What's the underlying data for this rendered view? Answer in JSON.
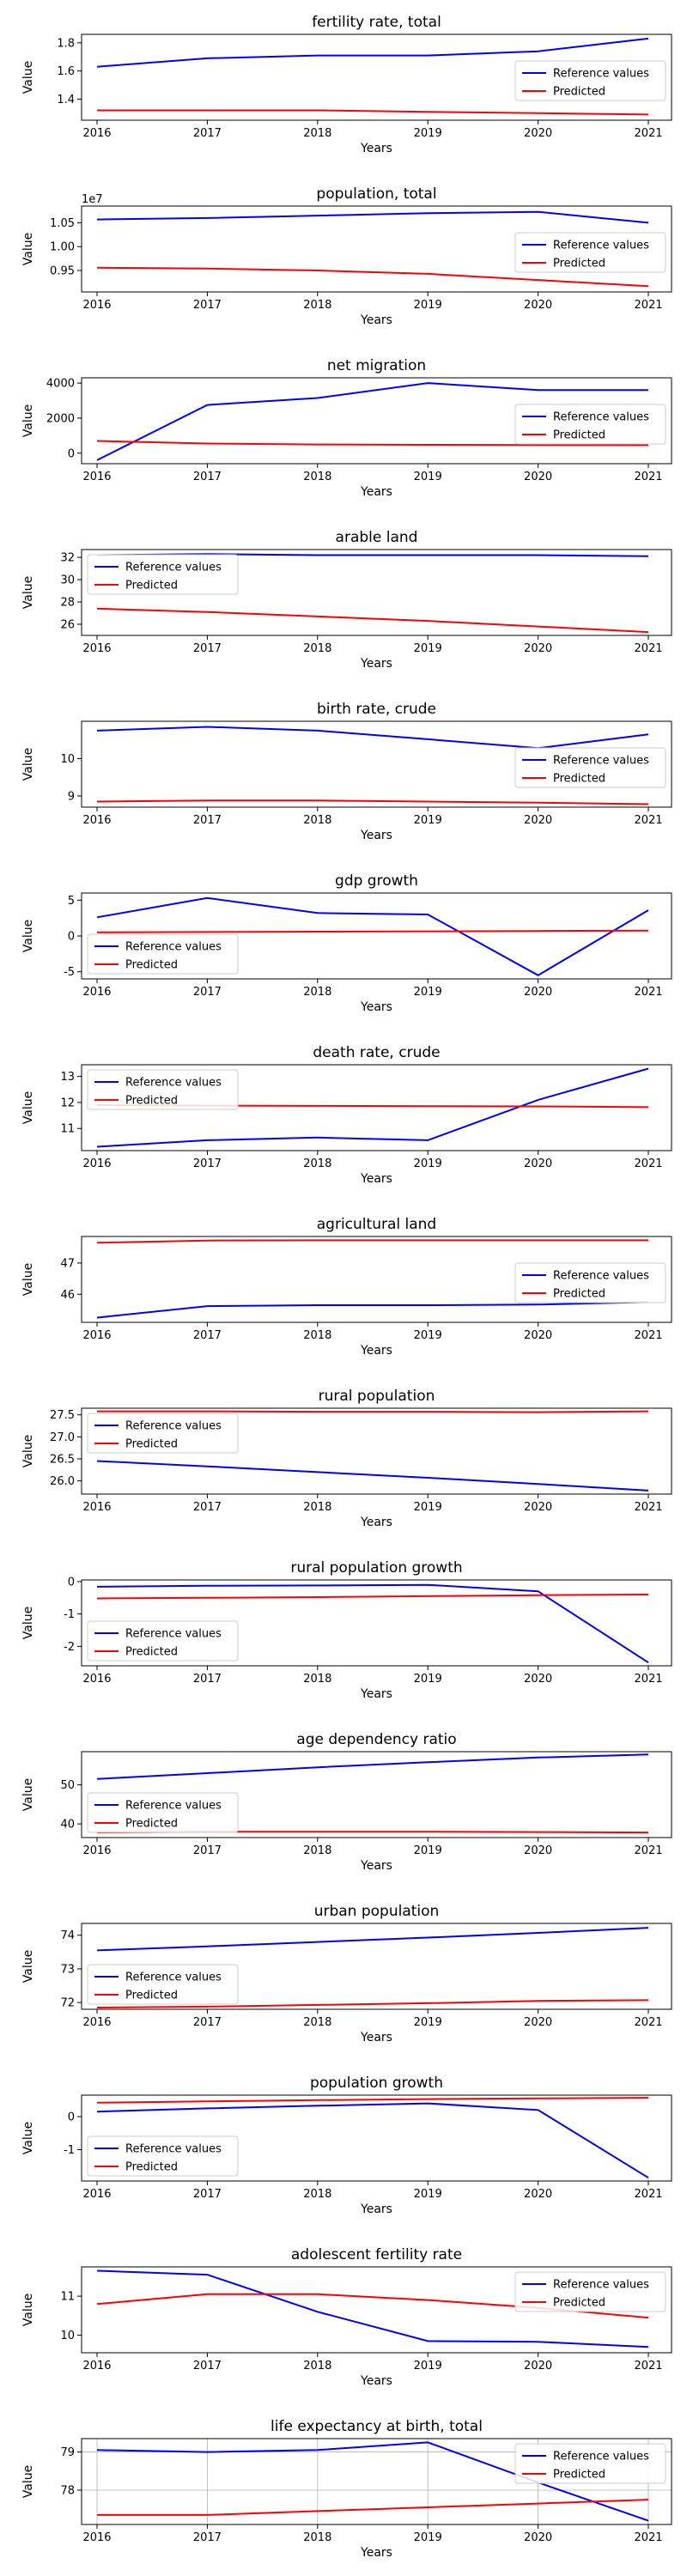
{
  "chart_data": [
    {
      "type": "line",
      "title": "fertility rate, total",
      "xlabel": "Years",
      "ylabel": "Value",
      "x": [
        2016,
        2017,
        2018,
        2019,
        2020,
        2021
      ],
      "ylim": [
        1.25,
        1.86
      ],
      "yticks": [
        "1.4",
        "1.6",
        "1.8"
      ],
      "ytick_values": [
        1.4,
        1.6,
        1.8
      ],
      "legend": "center-right",
      "series": [
        {
          "name": "Reference values",
          "color": "#0000ff",
          "values": [
            1.63,
            1.69,
            1.71,
            1.71,
            1.74,
            1.83
          ]
        },
        {
          "name": "Predicted",
          "color": "#ff0000",
          "values": [
            1.32,
            1.32,
            1.32,
            1.31,
            1.3,
            1.29
          ]
        }
      ]
    },
    {
      "type": "line",
      "title": "population, total",
      "xlabel": "Years",
      "ylabel": "Value",
      "offset_label": "1e7",
      "x": [
        2016,
        2017,
        2018,
        2019,
        2020,
        2021
      ],
      "ylim": [
        0.905,
        1.085
      ],
      "yticks": [
        "0.95",
        "1.00",
        "1.05"
      ],
      "ytick_values": [
        0.95,
        1.0,
        1.05
      ],
      "legend": "center-right",
      "series": [
        {
          "name": "Reference values",
          "color": "#0000ff",
          "values": [
            1.057,
            1.06,
            1.065,
            1.07,
            1.073,
            1.05
          ]
        },
        {
          "name": "Predicted",
          "color": "#ff0000",
          "values": [
            0.956,
            0.954,
            0.95,
            0.943,
            0.93,
            0.917
          ]
        }
      ]
    },
    {
      "type": "line",
      "title": "net migration",
      "xlabel": "Years",
      "ylabel": "Value",
      "x": [
        2016,
        2017,
        2018,
        2019,
        2020,
        2021
      ],
      "ylim": [
        -600,
        4300
      ],
      "yticks": [
        "0",
        "2000",
        "4000"
      ],
      "ytick_values": [
        0,
        2000,
        4000
      ],
      "legend": "center-right",
      "series": [
        {
          "name": "Reference values",
          "color": "#0000ff",
          "values": [
            -400,
            2750,
            3150,
            4000,
            3600,
            3600
          ]
        },
        {
          "name": "Predicted",
          "color": "#ff0000",
          "values": [
            700,
            550,
            500,
            480,
            470,
            460
          ]
        }
      ]
    },
    {
      "type": "line",
      "title": "arable land",
      "xlabel": "Years",
      "ylabel": "Value",
      "x": [
        2016,
        2017,
        2018,
        2019,
        2020,
        2021
      ],
      "ylim": [
        25.0,
        32.7
      ],
      "yticks": [
        "26",
        "28",
        "30",
        "32"
      ],
      "ytick_values": [
        26,
        28,
        30,
        32
      ],
      "legend": "upper-left",
      "series": [
        {
          "name": "Reference values",
          "color": "#0000ff",
          "values": [
            32.2,
            32.3,
            32.2,
            32.2,
            32.2,
            32.1
          ]
        },
        {
          "name": "Predicted",
          "color": "#ff0000",
          "values": [
            27.4,
            27.1,
            26.7,
            26.3,
            25.8,
            25.3
          ]
        }
      ]
    },
    {
      "type": "line",
      "title": "birth rate, crude",
      "xlabel": "Years",
      "ylabel": "Value",
      "x": [
        2016,
        2017,
        2018,
        2019,
        2020,
        2021
      ],
      "ylim": [
        8.7,
        11.0
      ],
      "yticks": [
        "9",
        "10"
      ],
      "ytick_values": [
        9,
        10
      ],
      "legend": "center-right",
      "series": [
        {
          "name": "Reference values",
          "color": "#0000ff",
          "values": [
            10.75,
            10.85,
            10.75,
            10.52,
            10.28,
            10.65
          ]
        },
        {
          "name": "Predicted",
          "color": "#ff0000",
          "values": [
            8.85,
            8.88,
            8.88,
            8.85,
            8.82,
            8.78
          ]
        }
      ]
    },
    {
      "type": "line",
      "title": "gdp growth",
      "xlabel": "Years",
      "ylabel": "Value",
      "x": [
        2016,
        2017,
        2018,
        2019,
        2020,
        2021
      ],
      "ylim": [
        -6.0,
        6.0
      ],
      "yticks": [
        "-5",
        "0",
        "5"
      ],
      "ytick_values": [
        -5,
        0,
        5
      ],
      "legend": "lower-left",
      "series": [
        {
          "name": "Reference values",
          "color": "#0000ff",
          "values": [
            2.6,
            5.3,
            3.2,
            3.0,
            -5.5,
            3.6
          ]
        },
        {
          "name": "Predicted",
          "color": "#ff0000",
          "values": [
            0.5,
            0.55,
            0.6,
            0.65,
            0.7,
            0.75
          ]
        }
      ]
    },
    {
      "type": "line",
      "title": "death rate, crude",
      "xlabel": "Years",
      "ylabel": "Value",
      "x": [
        2016,
        2017,
        2018,
        2019,
        2020,
        2021
      ],
      "ylim": [
        10.15,
        13.45
      ],
      "yticks": [
        "11",
        "12",
        "13"
      ],
      "ytick_values": [
        11,
        12,
        13
      ],
      "legend": "upper-left",
      "series": [
        {
          "name": "Reference values",
          "color": "#0000ff",
          "values": [
            10.3,
            10.55,
            10.65,
            10.55,
            12.1,
            13.3
          ]
        },
        {
          "name": "Predicted",
          "color": "#ff0000",
          "values": [
            11.9,
            11.88,
            11.87,
            11.86,
            11.85,
            11.82
          ]
        }
      ]
    },
    {
      "type": "line",
      "title": "agricultural land",
      "xlabel": "Years",
      "ylabel": "Value",
      "x": [
        2016,
        2017,
        2018,
        2019,
        2020,
        2021
      ],
      "ylim": [
        45.1,
        47.85
      ],
      "yticks": [
        "46",
        "47"
      ],
      "ytick_values": [
        46,
        47
      ],
      "legend": "center-right",
      "series": [
        {
          "name": "Reference values",
          "color": "#0000ff",
          "values": [
            45.25,
            45.62,
            45.65,
            45.65,
            45.67,
            45.75
          ]
        },
        {
          "name": "Predicted",
          "color": "#ff0000",
          "values": [
            47.65,
            47.72,
            47.73,
            47.73,
            47.73,
            47.73
          ]
        }
      ]
    },
    {
      "type": "line",
      "title": "rural population",
      "xlabel": "Years",
      "ylabel": "Value",
      "x": [
        2016,
        2017,
        2018,
        2019,
        2020,
        2021
      ],
      "ylim": [
        25.7,
        27.65
      ],
      "yticks": [
        "26.0",
        "26.5",
        "27.0",
        "27.5"
      ],
      "ytick_values": [
        26.0,
        26.5,
        27.0,
        27.5
      ],
      "legend": "upper-left",
      "series": [
        {
          "name": "Reference values",
          "color": "#0000ff",
          "values": [
            26.45,
            26.33,
            26.2,
            26.07,
            25.93,
            25.78
          ]
        },
        {
          "name": "Predicted",
          "color": "#ff0000",
          "values": [
            27.58,
            27.58,
            27.57,
            27.57,
            27.56,
            27.58
          ]
        }
      ]
    },
    {
      "type": "line",
      "title": "rural population growth",
      "xlabel": "Years",
      "ylabel": "Value",
      "x": [
        2016,
        2017,
        2018,
        2019,
        2020,
        2021
      ],
      "ylim": [
        -2.6,
        0.05
      ],
      "yticks": [
        "-2",
        "-1",
        "0"
      ],
      "ytick_values": [
        -2,
        -1,
        0
      ],
      "legend": "lower-left",
      "series": [
        {
          "name": "Reference values",
          "color": "#0000ff",
          "values": [
            -0.16,
            -0.13,
            -0.12,
            -0.1,
            -0.3,
            -2.5
          ]
        },
        {
          "name": "Predicted",
          "color": "#ff0000",
          "values": [
            -0.52,
            -0.5,
            -0.48,
            -0.45,
            -0.42,
            -0.4
          ]
        }
      ]
    },
    {
      "type": "line",
      "title": "age dependency ratio",
      "xlabel": "Years",
      "ylabel": "Value",
      "x": [
        2016,
        2017,
        2018,
        2019,
        2020,
        2021
      ],
      "ylim": [
        36.5,
        58.5
      ],
      "yticks": [
        "40",
        "50"
      ],
      "ytick_values": [
        40,
        50
      ],
      "legend": "lower-left",
      "series": [
        {
          "name": "Reference values",
          "color": "#0000ff",
          "values": [
            51.5,
            53.0,
            54.5,
            55.8,
            57.0,
            57.8
          ]
        },
        {
          "name": "Predicted",
          "color": "#ff0000",
          "values": [
            37.8,
            38.0,
            38.0,
            38.0,
            37.9,
            37.8
          ]
        }
      ]
    },
    {
      "type": "line",
      "title": "urban population",
      "xlabel": "Years",
      "ylabel": "Value",
      "x": [
        2016,
        2017,
        2018,
        2019,
        2020,
        2021
      ],
      "ylim": [
        71.8,
        74.35
      ],
      "yticks": [
        "72",
        "73",
        "74"
      ],
      "ytick_values": [
        72,
        73,
        74
      ],
      "legend": "lower-left",
      "series": [
        {
          "name": "Reference values",
          "color": "#0000ff",
          "values": [
            73.55,
            73.67,
            73.8,
            73.93,
            74.07,
            74.22
          ]
        },
        {
          "name": "Predicted",
          "color": "#ff0000",
          "values": [
            71.85,
            71.88,
            71.93,
            71.98,
            72.05,
            72.07
          ]
        }
      ]
    },
    {
      "type": "line",
      "title": "population growth",
      "xlabel": "Years",
      "ylabel": "Value",
      "x": [
        2016,
        2017,
        2018,
        2019,
        2020,
        2021
      ],
      "ylim": [
        -1.95,
        0.65
      ],
      "yticks": [
        "-1",
        "0"
      ],
      "ytick_values": [
        -1,
        0
      ],
      "legend": "lower-left",
      "series": [
        {
          "name": "Reference values",
          "color": "#0000ff",
          "values": [
            0.15,
            0.25,
            0.33,
            0.4,
            0.2,
            -1.85
          ]
        },
        {
          "name": "Predicted",
          "color": "#ff0000",
          "values": [
            0.42,
            0.46,
            0.5,
            0.53,
            0.55,
            0.57
          ]
        }
      ]
    },
    {
      "type": "line",
      "title": "adolescent fertility rate",
      "xlabel": "Years",
      "ylabel": "Value",
      "x": [
        2016,
        2017,
        2018,
        2019,
        2020,
        2021
      ],
      "ylim": [
        9.55,
        11.75
      ],
      "yticks": [
        "10",
        "11"
      ],
      "ytick_values": [
        10,
        11
      ],
      "legend": "upper-right",
      "series": [
        {
          "name": "Reference values",
          "color": "#0000ff",
          "values": [
            11.65,
            11.55,
            10.6,
            9.85,
            9.83,
            9.7
          ]
        },
        {
          "name": "Predicted",
          "color": "#ff0000",
          "values": [
            10.8,
            11.05,
            11.05,
            10.9,
            10.7,
            10.45
          ]
        }
      ]
    },
    {
      "type": "line",
      "title": "life expectancy at birth, total",
      "xlabel": "Years",
      "ylabel": "Value",
      "x": [
        2016,
        2017,
        2018,
        2019,
        2020,
        2021
      ],
      "ylim": [
        77.1,
        79.35
      ],
      "yticks": [
        "78",
        "79"
      ],
      "ytick_values": [
        78,
        79
      ],
      "legend": "upper-right",
      "grid": true,
      "series": [
        {
          "name": "Reference values",
          "color": "#0000ff",
          "values": [
            79.05,
            79.0,
            79.05,
            79.25,
            78.2,
            77.2
          ]
        },
        {
          "name": "Predicted",
          "color": "#ff0000",
          "values": [
            77.35,
            77.35,
            77.45,
            77.55,
            77.65,
            77.75
          ]
        }
      ]
    }
  ]
}
